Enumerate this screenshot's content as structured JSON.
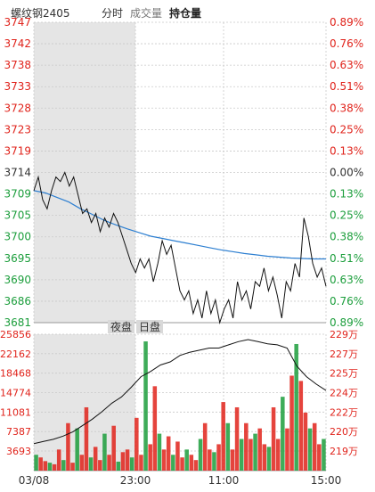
{
  "header": {
    "symbol": "螺纹钢2405",
    "tabs": [
      "分时",
      "成交量",
      "持仓量"
    ],
    "active_tab": 2
  },
  "colors": {
    "up": "#e0231b",
    "down": "#1c9e3c",
    "avg_line": "#2d7fd1",
    "price_line": "#111111",
    "night_shade": "#e5e5e5",
    "grid": "#c9c9c9"
  },
  "session_labels": {
    "night": "夜盘",
    "day": "日盘"
  },
  "chart_data": {
    "type": "line",
    "price_axis": {
      "ticks": [
        "3747",
        "3742",
        "3738",
        "3733",
        "3728",
        "3723",
        "3719",
        "3714",
        "3709",
        "3705",
        "3700",
        "3695",
        "3690",
        "3686",
        "3681"
      ],
      "pct_ticks": [
        "0.89%",
        "0.76%",
        "0.63%",
        "0.51%",
        "0.38%",
        "0.25%",
        "0.13%",
        "0.00%",
        "0.13%",
        "0.25%",
        "0.38%",
        "0.51%",
        "0.63%",
        "0.76%",
        "0.89%"
      ],
      "ylim": [
        3681,
        3747
      ],
      "prev_close": 3714
    },
    "volume_axis": {
      "ticks": [
        "25856",
        "22162",
        "18468",
        "14774",
        "11081",
        "7387",
        "3693"
      ],
      "ylim": [
        0,
        25856
      ]
    },
    "oi_axis": {
      "ticks": [
        "229万",
        "227万",
        "225万",
        "224万",
        "222万",
        "220万",
        "219万"
      ],
      "ylim": [
        218.5,
        229.5
      ]
    },
    "x_ticks": [
      "03/08",
      "23:00",
      "11:00",
      "15:00"
    ],
    "price": [
      3710,
      3713,
      3708,
      3706,
      3710,
      3713,
      3712,
      3714,
      3711,
      3713,
      3709,
      3705,
      3706,
      3703,
      3705,
      3701,
      3704,
      3702,
      3705,
      3703,
      3700,
      3697,
      3694,
      3692,
      3695,
      3693,
      3695,
      3690,
      3694,
      3699,
      3696,
      3698,
      3693,
      3688,
      3686,
      3688,
      3683,
      3686,
      3682,
      3688,
      3683,
      3686,
      3681,
      3684,
      3686,
      3682,
      3690,
      3686,
      3688,
      3684,
      3690,
      3689,
      3693,
      3688,
      3691,
      3687,
      3682,
      3690,
      3688,
      3694,
      3691,
      3704,
      3700,
      3694,
      3691,
      3693,
      3689
    ],
    "avg": [
      3710,
      3709.5,
      3708.5,
      3707.5,
      3706,
      3704.8,
      3703.5,
      3702.5,
      3701.6,
      3700.8,
      3700,
      3699.5,
      3699,
      3698.5,
      3698,
      3697.5,
      3697,
      3696.6,
      3696.2,
      3695.9,
      3695.6,
      3695.4,
      3695.2,
      3695.1,
      3695,
      3695
    ],
    "volume": [
      3000,
      2500,
      1800,
      1500,
      1200,
      4000,
      2000,
      9000,
      1500,
      8000,
      3000,
      12000,
      2500,
      4500,
      2000,
      7000,
      3000,
      8500,
      1700,
      3500,
      4000,
      2500,
      10000,
      3000,
      24500,
      5000,
      16000,
      7000,
      4000,
      6500,
      3000,
      5500,
      2500,
      4000,
      3000,
      2000,
      6000,
      9000,
      4000,
      3500,
      5000,
      13000,
      9000,
      4000,
      12000,
      6000,
      9000,
      6000,
      7000,
      8000,
      5000,
      4500,
      12000,
      6000,
      14000,
      8000,
      18000,
      24000,
      17000,
      11000,
      8000,
      9000,
      5000,
      6000
    ],
    "open_interest": [
      219.2,
      219.4,
      219.6,
      219.9,
      220.3,
      220.9,
      221.5,
      222.2,
      223.0,
      223.6,
      224.5,
      225.5,
      226.0,
      226.6,
      226.9,
      227.5,
      227.8,
      228.0,
      228.2,
      228.2,
      228.5,
      228.8,
      229.0,
      228.8,
      228.6,
      228.5,
      228.2,
      226.5,
      225.5,
      224.8,
      224.2
    ]
  }
}
